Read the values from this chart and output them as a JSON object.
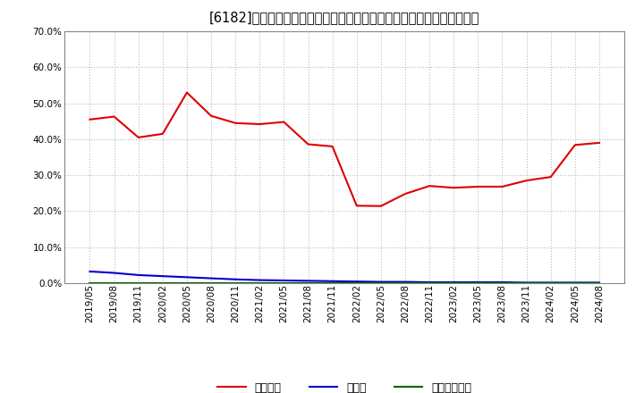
{
  "title": "[6182]　自己資本、のれん、繰延税金資産の総資産に対する比率の推移",
  "xlabels": [
    "2019/05",
    "2019/08",
    "2019/11",
    "2020/02",
    "2020/05",
    "2020/08",
    "2020/11",
    "2021/02",
    "2021/05",
    "2021/08",
    "2021/11",
    "2022/02",
    "2022/05",
    "2022/08",
    "2022/11",
    "2023/02",
    "2023/05",
    "2023/08",
    "2023/11",
    "2024/02",
    "2024/05",
    "2024/08"
  ],
  "equity": [
    0.455,
    0.463,
    0.405,
    0.415,
    0.53,
    0.465,
    0.445,
    0.442,
    0.448,
    0.386,
    0.38,
    0.215,
    0.214,
    0.248,
    0.27,
    0.265,
    0.268,
    0.268,
    0.285,
    0.295,
    0.384,
    0.39
  ],
  "goodwill": [
    0.032,
    0.028,
    0.022,
    0.019,
    0.016,
    0.013,
    0.01,
    0.008,
    0.007,
    0.006,
    0.005,
    0.004,
    0.003,
    0.003,
    0.002,
    0.002,
    0.002,
    0.002,
    0.001,
    0.001,
    0.001,
    0.001
  ],
  "deferred_tax": [
    0.0005,
    0.0005,
    0.0005,
    0.0005,
    0.0005,
    0.0005,
    0.0005,
    0.0005,
    0.0005,
    0.0005,
    0.0005,
    0.0005,
    0.0005,
    0.0005,
    0.0005,
    0.0005,
    0.0005,
    0.0005,
    0.0005,
    0.0005,
    0.0005,
    0.0005
  ],
  "equity_color": "#dd0000",
  "goodwill_color": "#0000cc",
  "deferred_tax_color": "#006600",
  "bg_color": "#ffffff",
  "plot_bg_color": "#ffffff",
  "grid_color": "#aaaaaa",
  "ylim": [
    0.0,
    0.7
  ],
  "yticks": [
    0.0,
    0.1,
    0.2,
    0.3,
    0.4,
    0.5,
    0.6,
    0.7
  ],
  "legend_equity": "自己資本",
  "legend_goodwill": "のれん",
  "legend_deferred": "繰延税金資産"
}
